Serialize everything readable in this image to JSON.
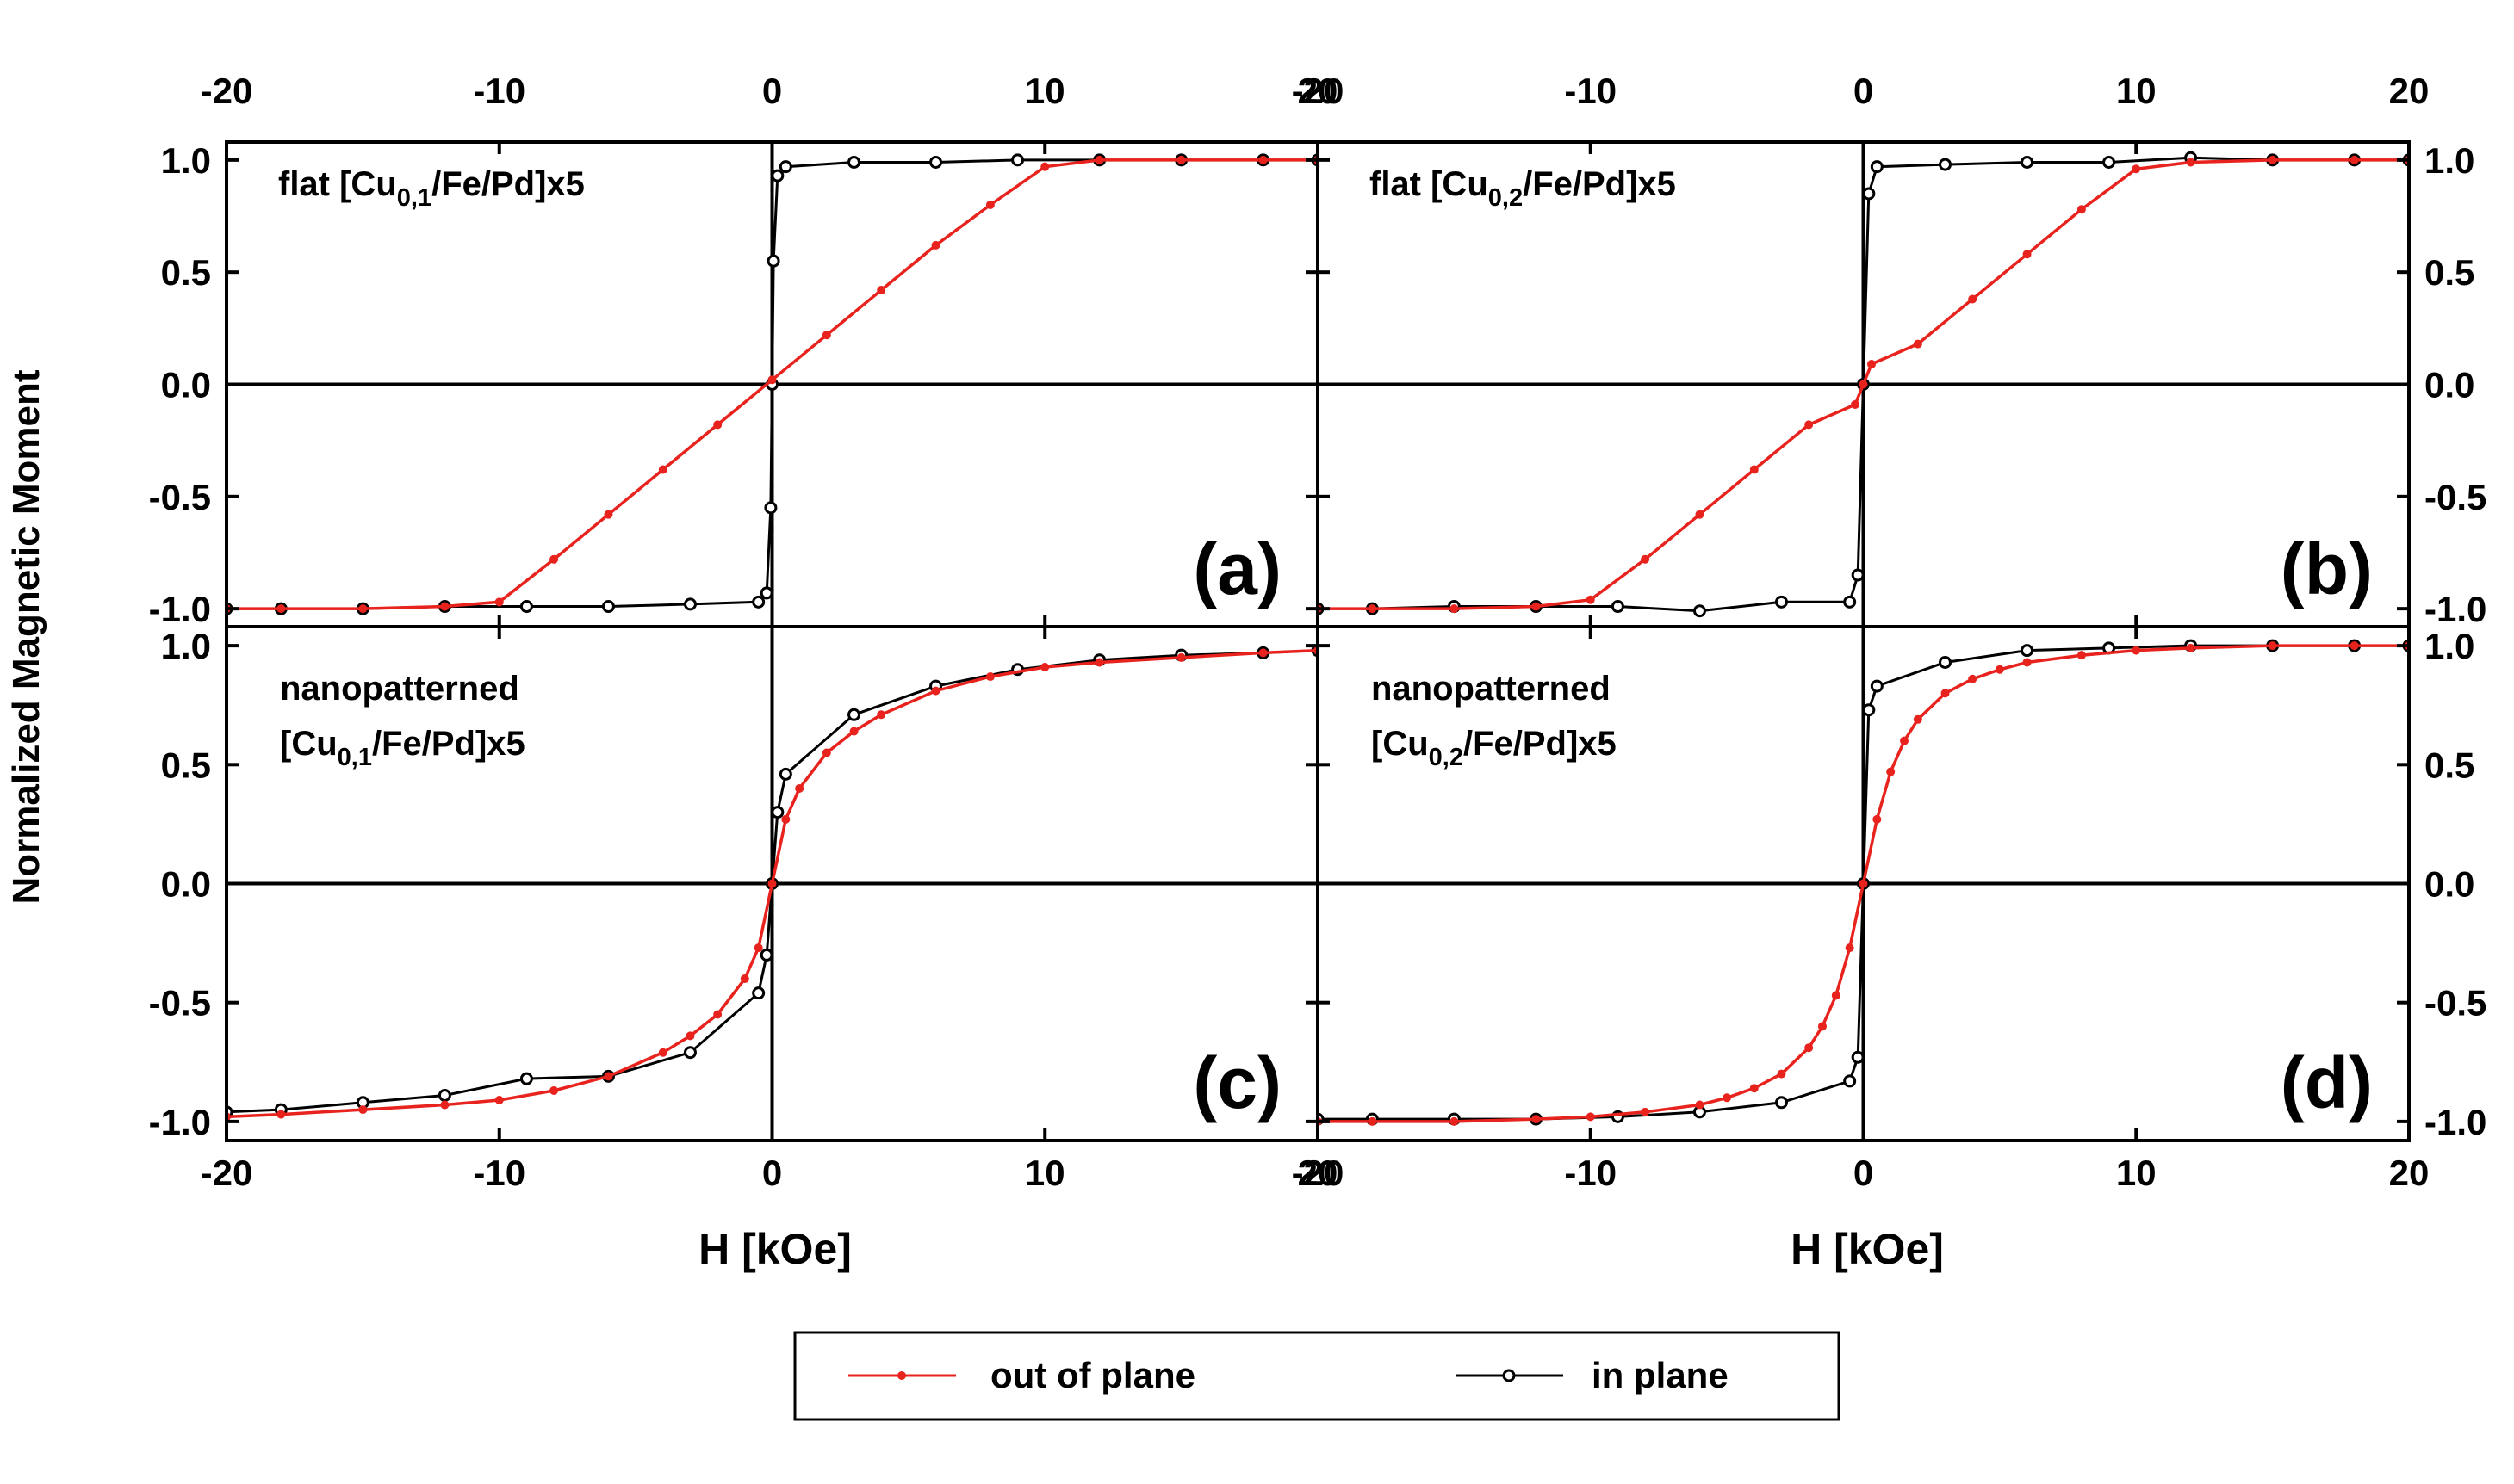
{
  "figure": {
    "ylabel": "Normalized Magnetic Moment",
    "xlabel": "H [kOe]",
    "colors": {
      "out_of_plane": "#e8231e",
      "in_plane": "#000000"
    },
    "legend": {
      "out_of_plane": "out of plane",
      "in_plane": "in plane"
    }
  },
  "chart_data": [
    {
      "type": "line",
      "panel": "(a)",
      "title_lines": [
        [
          {
            "t": "flat  [Cu"
          },
          {
            "t": "0,1",
            "sub": true
          },
          {
            "t": "/Fe/Pd]x5"
          }
        ]
      ],
      "xlim": [
        -20,
        20
      ],
      "ylim": [
        -1.08,
        1.08
      ],
      "xticks": [
        -20,
        -10,
        0,
        10,
        20
      ],
      "yticks": [
        -1.0,
        -0.5,
        0.0,
        0.5,
        1.0
      ],
      "ytick_labels": [
        "-1.0",
        "-0.5",
        "0.0",
        "0.5",
        "1.0"
      ],
      "series": [
        {
          "name": "out of plane",
          "x": [
            -20,
            -18,
            -15,
            -12,
            -10,
            -8,
            -6,
            -4,
            -2,
            0,
            2,
            4,
            6,
            8,
            10,
            12,
            15,
            18,
            20
          ],
          "y": [
            -1.0,
            -1.0,
            -1.0,
            -0.99,
            -0.97,
            -0.78,
            -0.58,
            -0.38,
            -0.18,
            0.02,
            0.22,
            0.42,
            0.62,
            0.8,
            0.97,
            1.0,
            1.0,
            1.0,
            1.0
          ]
        },
        {
          "name": "in plane",
          "x": [
            -20,
            -18,
            -15,
            -12,
            -9,
            -6,
            -3,
            -0.5,
            -0.2,
            -0.05,
            0,
            0.05,
            0.2,
            0.5,
            3,
            6,
            9,
            12,
            15,
            18,
            20
          ],
          "y": [
            -1.0,
            -1.0,
            -1.0,
            -0.99,
            -0.99,
            -0.99,
            -0.98,
            -0.97,
            -0.93,
            -0.55,
            0.0,
            0.55,
            0.93,
            0.97,
            0.99,
            0.99,
            1.0,
            1.0,
            1.0,
            1.0,
            1.0
          ]
        }
      ]
    },
    {
      "type": "line",
      "panel": "(b)",
      "title_lines": [
        [
          {
            "t": "flat  [Cu"
          },
          {
            "t": "0,2",
            "sub": true
          },
          {
            "t": "/Fe/Pd]x5"
          }
        ]
      ],
      "xlim": [
        -20,
        20
      ],
      "ylim": [
        -1.08,
        1.08
      ],
      "xticks": [
        -20,
        -10,
        0,
        10,
        20
      ],
      "yticks": [
        -1.0,
        -0.5,
        0.0,
        0.5,
        1.0
      ],
      "ytick_labels": [
        "-1.0",
        "-0.5",
        "0.0",
        "0.5",
        "1.0"
      ],
      "series": [
        {
          "name": "out of plane",
          "x": [
            -20,
            -18,
            -15,
            -12,
            -10,
            -8,
            -6,
            -4,
            -2,
            -0.3,
            0,
            0.3,
            2,
            4,
            6,
            8,
            10,
            12,
            15,
            18,
            20
          ],
          "y": [
            -1.0,
            -1.0,
            -1.0,
            -0.99,
            -0.96,
            -0.78,
            -0.58,
            -0.38,
            -0.18,
            -0.09,
            0.0,
            0.09,
            0.18,
            0.38,
            0.58,
            0.78,
            0.96,
            0.99,
            1.0,
            1.0,
            1.0
          ]
        },
        {
          "name": "in plane",
          "x": [
            -20,
            -18,
            -15,
            -12,
            -9,
            -6,
            -3,
            -0.5,
            -0.2,
            0,
            0.2,
            0.5,
            3,
            6,
            9,
            12,
            15,
            18,
            20
          ],
          "y": [
            -1.0,
            -1.0,
            -0.99,
            -0.99,
            -0.99,
            -1.01,
            -0.97,
            -0.97,
            -0.85,
            0.0,
            0.85,
            0.97,
            0.98,
            0.99,
            0.99,
            1.01,
            1.0,
            1.0,
            1.0
          ]
        }
      ]
    },
    {
      "type": "line",
      "panel": "(c)",
      "title_lines": [
        [
          {
            "t": "nanopatterned"
          }
        ],
        [
          {
            "t": "[Cu"
          },
          {
            "t": "0,1",
            "sub": true
          },
          {
            "t": "/Fe/Pd]x5"
          }
        ]
      ],
      "xlim": [
        -20,
        20
      ],
      "ylim": [
        -1.08,
        1.08
      ],
      "xticks": [
        -20,
        -10,
        0,
        10,
        20
      ],
      "yticks": [
        -1.0,
        -0.5,
        0.0,
        0.5,
        1.0
      ],
      "ytick_labels": [
        "-1.0",
        "-0.5",
        "0.0",
        "0.5",
        "1.0"
      ],
      "series": [
        {
          "name": "out of plane",
          "x": [
            -20,
            -18,
            -15,
            -12,
            -10,
            -8,
            -6,
            -4,
            -3,
            -2,
            -1,
            -0.5,
            0,
            0.5,
            1,
            2,
            3,
            4,
            6,
            8,
            10,
            12,
            15,
            18,
            20
          ],
          "y": [
            -0.98,
            -0.97,
            -0.95,
            -0.93,
            -0.91,
            -0.87,
            -0.81,
            -0.71,
            -0.64,
            -0.55,
            -0.4,
            -0.27,
            0.0,
            0.27,
            0.4,
            0.55,
            0.64,
            0.71,
            0.81,
            0.87,
            0.91,
            0.93,
            0.95,
            0.97,
            0.98
          ]
        },
        {
          "name": "in plane",
          "x": [
            -20,
            -18,
            -15,
            -12,
            -9,
            -6,
            -3,
            -0.5,
            -0.2,
            0,
            0.2,
            0.5,
            3,
            6,
            9,
            12,
            15,
            18,
            20
          ],
          "y": [
            -0.96,
            -0.95,
            -0.92,
            -0.89,
            -0.82,
            -0.81,
            -0.71,
            -0.46,
            -0.3,
            0.0,
            0.3,
            0.46,
            0.71,
            0.83,
            0.9,
            0.94,
            0.96,
            0.97,
            0.98
          ]
        }
      ]
    },
    {
      "type": "line",
      "panel": "(d)",
      "title_lines": [
        [
          {
            "t": "nanopatterned"
          }
        ],
        [
          {
            "t": "[Cu"
          },
          {
            "t": "0,2",
            "sub": true
          },
          {
            "t": "/Fe/Pd]x5"
          }
        ]
      ],
      "xlim": [
        -20,
        20
      ],
      "ylim": [
        -1.08,
        1.08
      ],
      "xticks": [
        -20,
        -10,
        0,
        10,
        20
      ],
      "yticks": [
        -1.0,
        -0.5,
        0.0,
        0.5,
        1.0
      ],
      "ytick_labels": [
        "-1.0",
        "-0.5",
        "0.0",
        "0.5",
        "1.0"
      ],
      "series": [
        {
          "name": "out of plane",
          "x": [
            -20,
            -18,
            -15,
            -12,
            -10,
            -8,
            -6,
            -5,
            -4,
            -3,
            -2,
            -1.5,
            -1,
            -0.5,
            0,
            0.5,
            1,
            1.5,
            2,
            3,
            4,
            5,
            6,
            8,
            10,
            12,
            15,
            18,
            20
          ],
          "y": [
            -1.0,
            -1.0,
            -1.0,
            -0.99,
            -0.98,
            -0.96,
            -0.93,
            -0.9,
            -0.86,
            -0.8,
            -0.69,
            -0.6,
            -0.47,
            -0.27,
            0.0,
            0.27,
            0.47,
            0.6,
            0.69,
            0.8,
            0.86,
            0.9,
            0.93,
            0.96,
            0.98,
            0.99,
            1.0,
            1.0,
            1.0
          ]
        },
        {
          "name": "in plane",
          "x": [
            -20,
            -18,
            -15,
            -12,
            -9,
            -6,
            -3,
            -0.5,
            -0.2,
            0,
            0.2,
            0.5,
            3,
            6,
            9,
            12,
            15,
            18,
            20
          ],
          "y": [
            -0.99,
            -0.99,
            -0.99,
            -0.99,
            -0.98,
            -0.96,
            -0.92,
            -0.83,
            -0.73,
            0.0,
            0.73,
            0.83,
            0.93,
            0.98,
            0.99,
            1.0,
            1.0,
            1.0,
            1.0
          ]
        }
      ]
    }
  ]
}
